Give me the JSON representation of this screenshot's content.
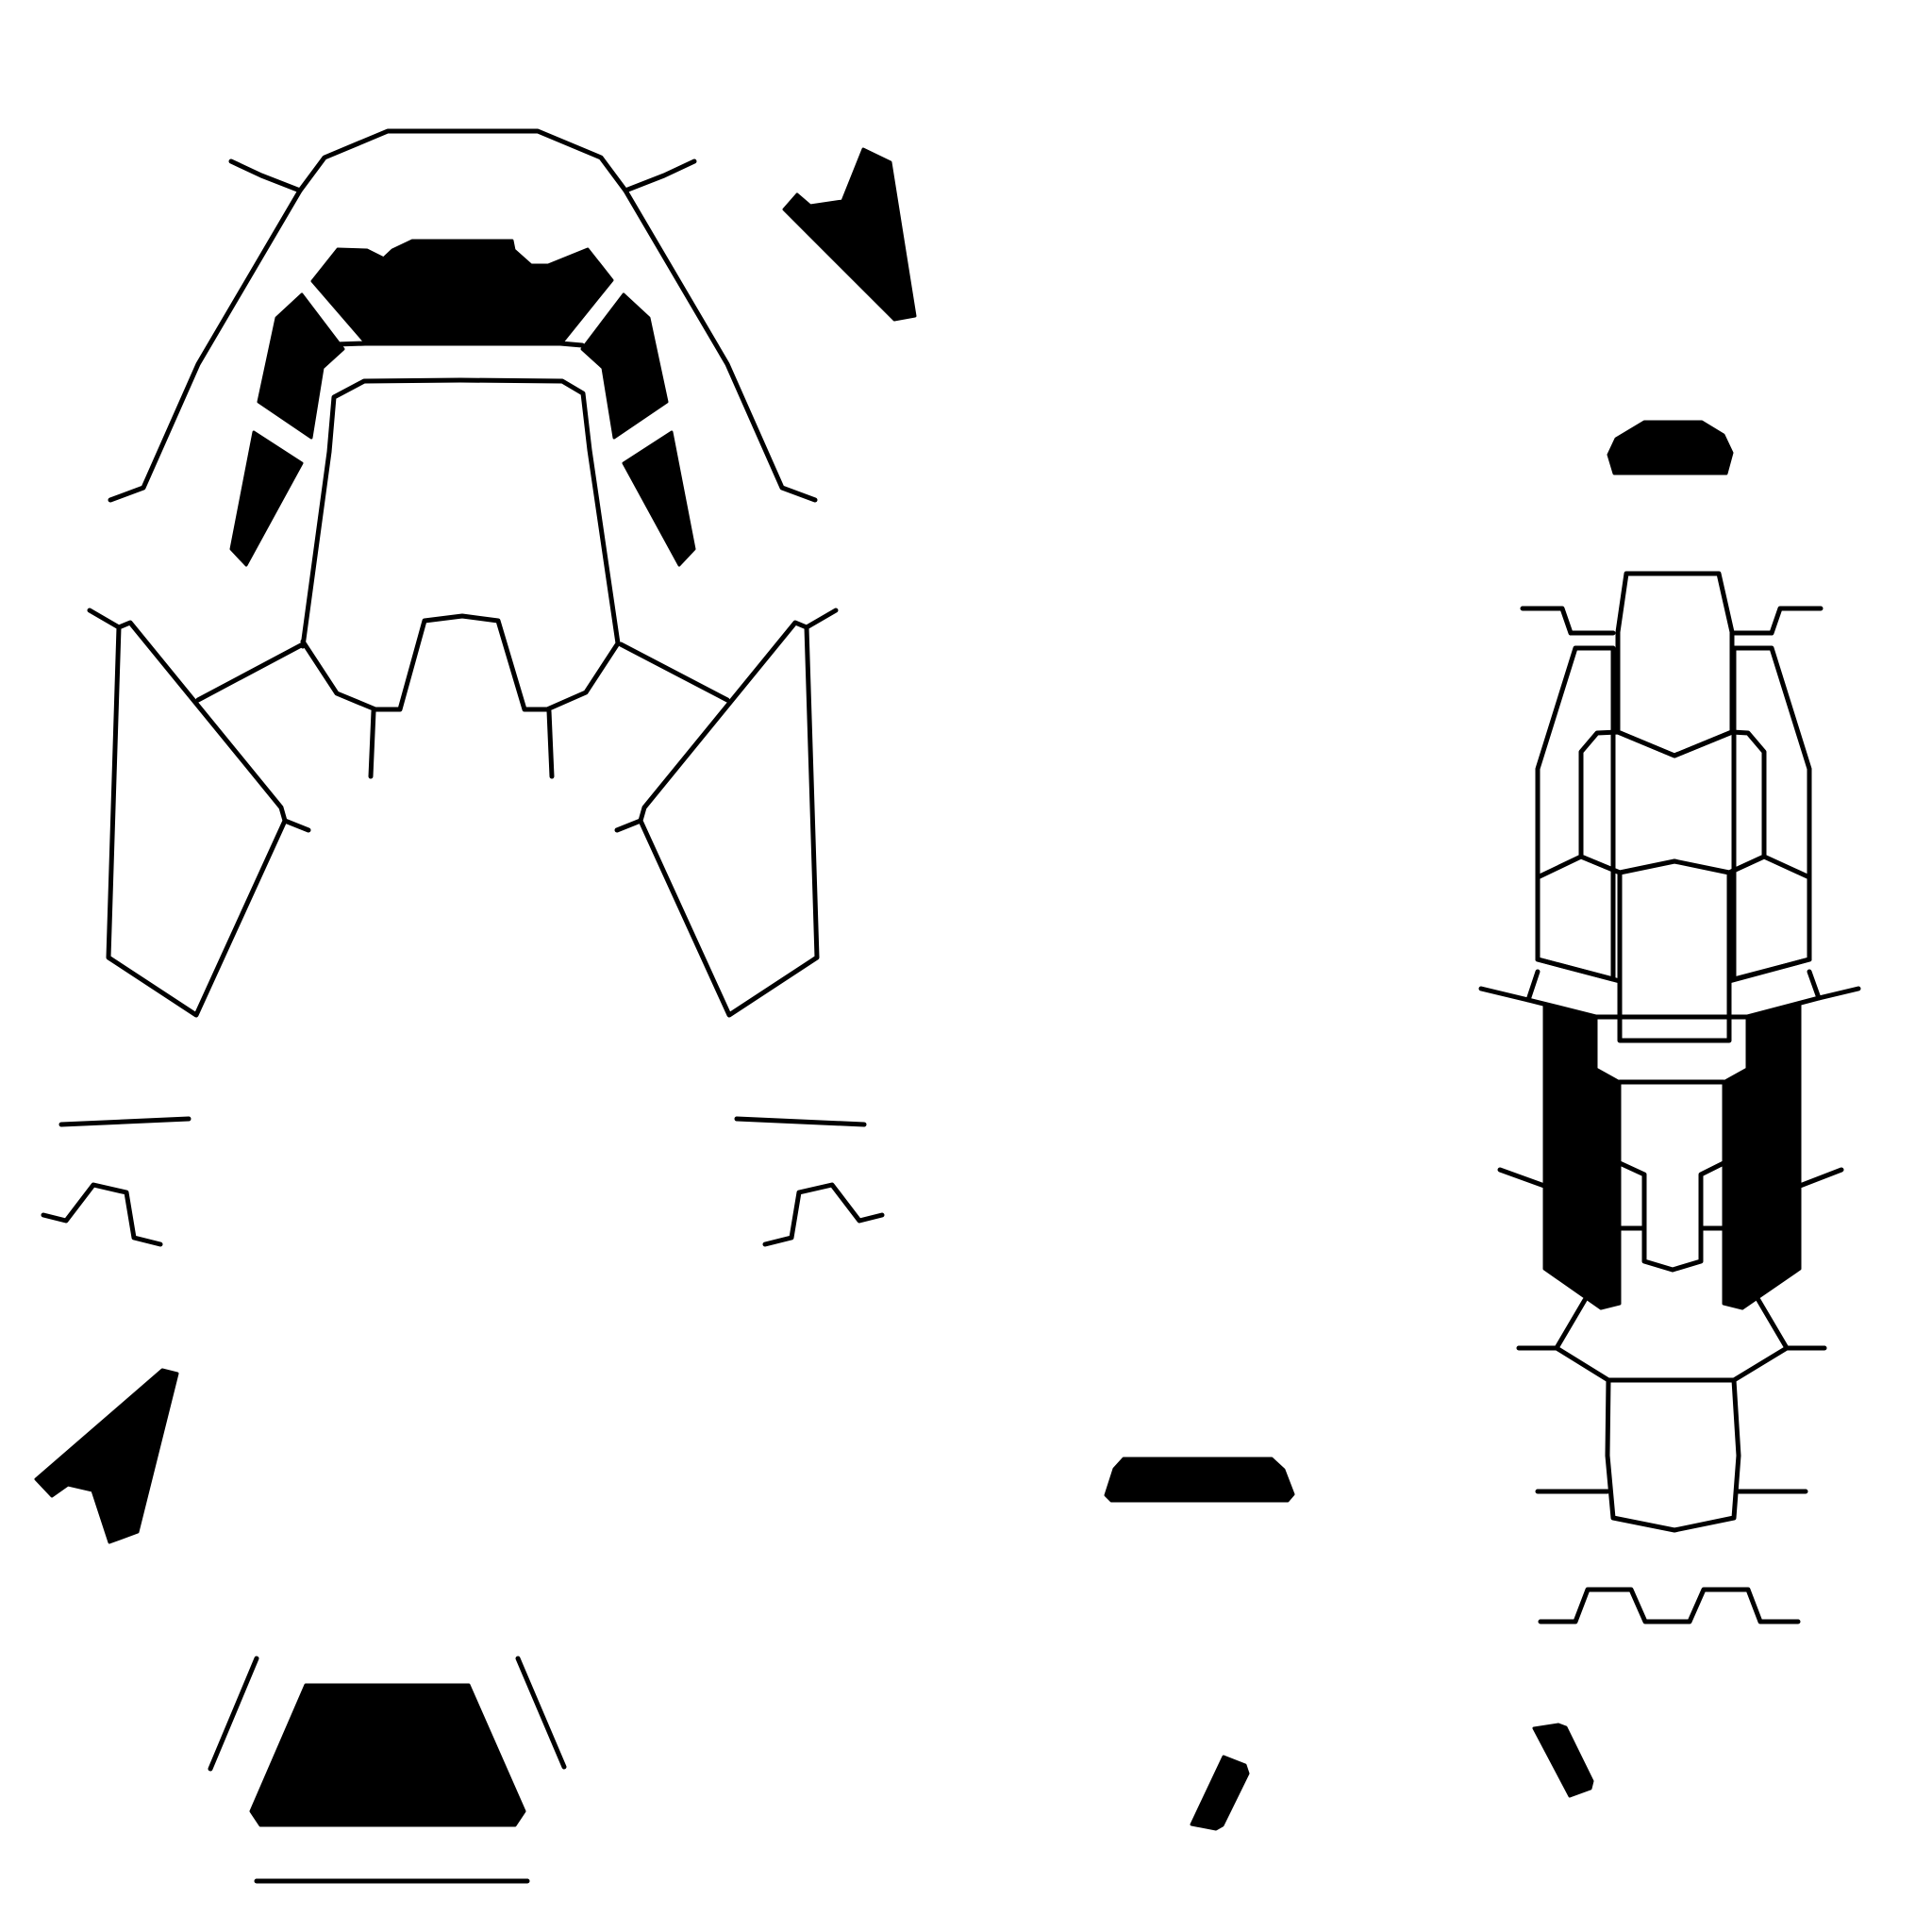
{
  "diagram": {
    "kind": "papercraft-template",
    "stroke_color": "#000000",
    "fill_color": "#000000",
    "background": "#ffffff"
  }
}
